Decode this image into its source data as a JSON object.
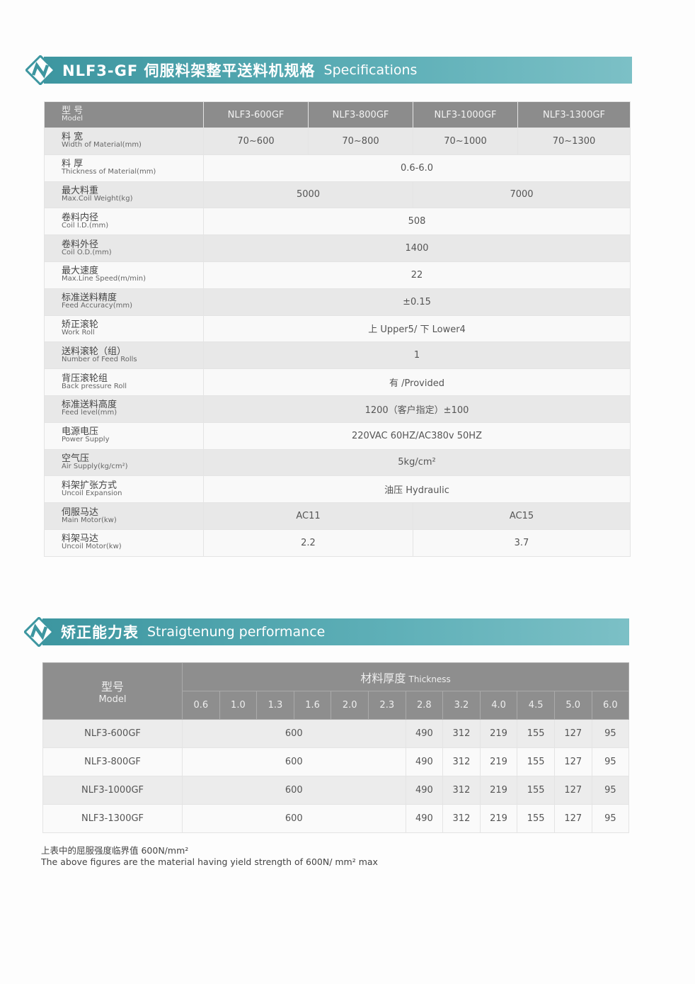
{
  "spec_banner": {
    "title_cn": "NLF3-GF 伺服料架整平送料机规格",
    "title_en": "Specifications"
  },
  "spec_table": {
    "header": {
      "zh": "型 号",
      "en": "Model",
      "models": [
        "NLF3-600GF",
        "NLF3-800GF",
        "NLF3-1000GF",
        "NLF3-1300GF"
      ]
    },
    "rows": [
      {
        "zh": "料 宽",
        "en": "Width of Material(mm)",
        "values": [
          "70~600",
          "70~800",
          "70~1000",
          "70~1300"
        ]
      },
      {
        "zh": "料 厚",
        "en": "Thickness of Material(mm)",
        "values": [
          "0.6-6.0"
        ]
      },
      {
        "zh": "最大料重",
        "en": "Max.Coil Weight(kg)",
        "values": [
          "5000",
          "7000"
        ]
      },
      {
        "zh": "卷料内径",
        "en": "Coil I.D.(mm)",
        "values": [
          "508"
        ]
      },
      {
        "zh": "卷料外径",
        "en": "Coil O.D.(mm)",
        "values": [
          "1400"
        ]
      },
      {
        "zh": "最大速度",
        "en": "Max.Line Speed(m/min)",
        "values": [
          "22"
        ]
      },
      {
        "zh": "标准送料精度",
        "en": "Feed Accuracy(mm)",
        "values": [
          "±0.15"
        ]
      },
      {
        "zh": "矫正滚轮",
        "en": "Work Roll",
        "values": [
          "上 Upper5/ 下 Lower4"
        ]
      },
      {
        "zh": "送料滚轮（组）",
        "en": "Number of Feed Rolls",
        "values": [
          "1"
        ]
      },
      {
        "zh": "背压滚轮组",
        "en": "Back pressure Roll",
        "values": [
          "有 /Provided"
        ]
      },
      {
        "zh": "标准送料高度",
        "en": "Feed level(mm)",
        "values": [
          "1200（客户指定）±100"
        ]
      },
      {
        "zh": "电源电压",
        "en": "Power Supply",
        "values": [
          "220VAC 60HZ/AC380v 50HZ"
        ]
      },
      {
        "zh": "空气压",
        "en": "Air Supply(kg/cm²)",
        "values": [
          "5kg/cm²"
        ]
      },
      {
        "zh": "料架扩张方式",
        "en": "Uncoil Expansion",
        "values": [
          "油压 Hydraulic"
        ]
      },
      {
        "zh": "伺服马达",
        "en": "Main Motor(kw)",
        "values": [
          "AC11",
          "AC15"
        ]
      },
      {
        "zh": "料架马达",
        "en": "Uncoil Motor(kw)",
        "values": [
          "2.2",
          "3.7"
        ]
      }
    ]
  },
  "perf_banner": {
    "title_cn": "矫正能力表",
    "title_en": "Straigtenung performance"
  },
  "perf_table": {
    "model_zh": "型号",
    "model_en": "Model",
    "thickness_zh": "材料厚度",
    "thickness_en": "Thickness",
    "thicknesses": [
      "0.6",
      "1.0",
      "1.3",
      "1.6",
      "2.0",
      "2.3",
      "2.8",
      "3.2",
      "4.0",
      "4.5",
      "5.0",
      "6.0"
    ],
    "rows": [
      {
        "model": "NLF3-600GF",
        "values": [
          "600",
          "490",
          "312",
          "219",
          "155",
          "127",
          "95"
        ]
      },
      {
        "model": "NLF3-800GF",
        "values": [
          "600",
          "490",
          "312",
          "219",
          "155",
          "127",
          "95"
        ]
      },
      {
        "model": "NLF3-1000GF",
        "values": [
          "600",
          "490",
          "312",
          "219",
          "155",
          "127",
          "95"
        ]
      },
      {
        "model": "NLF3-1300GF",
        "values": [
          "600",
          "490",
          "312",
          "219",
          "155",
          "127",
          "95"
        ]
      }
    ]
  },
  "note": {
    "zh": "上表中的屈服强度临界值 600N/mm²",
    "en": "The above figures are the material having yield strength of 600N/ mm² max"
  },
  "colors": {
    "banner": "#4fa5ae",
    "header": "#8c8c8c"
  }
}
